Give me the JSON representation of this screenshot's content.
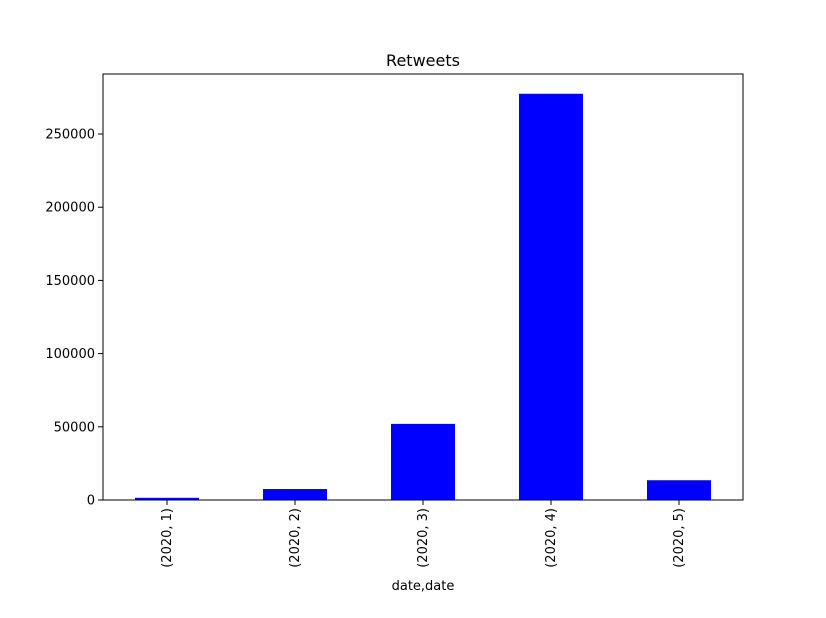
{
  "chart_data": {
    "type": "bar",
    "title": "Retweets",
    "xlabel": "date,date",
    "ylabel": "",
    "categories": [
      "(2020, 1)",
      "(2020, 2)",
      "(2020, 3)",
      "(2020, 4)",
      "(2020, 5)"
    ],
    "values": [
      1500,
      7500,
      52000,
      277500,
      13500
    ],
    "ylim": [
      0,
      291000
    ],
    "yticks": [
      0,
      50000,
      100000,
      150000,
      200000,
      250000
    ],
    "bar_color": "#0000ff",
    "grid": false,
    "legend": "none"
  }
}
